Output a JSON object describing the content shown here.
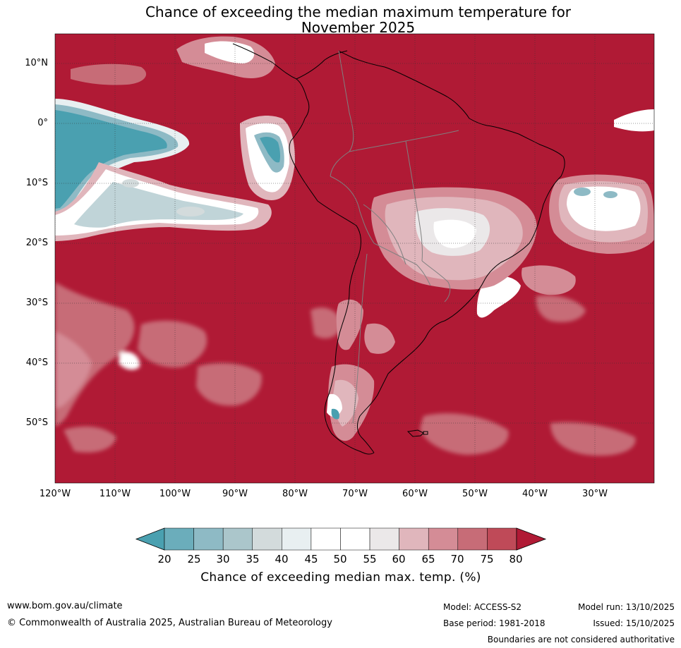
{
  "title": {
    "line1": "Chance of exceeding the median maximum temperature for",
    "line2": "November 2025"
  },
  "map": {
    "region": "South America",
    "latitude_labels": [
      "10°N",
      "0°",
      "10°S",
      "20°S",
      "30°S",
      "40°S",
      "50°S"
    ],
    "longitude_labels": [
      "120°W",
      "110°W",
      "100°W",
      "90°W",
      "80°W",
      "70°W",
      "60°W",
      "50°W",
      "40°W",
      "30°W"
    ],
    "colors": {
      "ocean_dominant": "#b01a35",
      "land_outline": "#000000",
      "borders": "#808080"
    }
  },
  "colorbar": {
    "title": "Chance of exceeding median max. temp. (%)",
    "ticks": [
      "20",
      "25",
      "30",
      "35",
      "40",
      "45",
      "50",
      "55",
      "60",
      "65",
      "70",
      "75",
      "80"
    ],
    "colors": [
      "#4aa0b0",
      "#6badbb",
      "#8ebac5",
      "#abc6cb",
      "#d3dbdc",
      "#e8eff1",
      "#ffffff",
      "#ffffff",
      "#ebe8e9",
      "#e0b6bc",
      "#d48c96",
      "#c76c77",
      "#bf4a58",
      "#b01a35"
    ]
  },
  "footer": {
    "website": "www.bom.gov.au/climate",
    "copyright": "© Commonwealth of Australia 2025, Australian Bureau of Meteorology",
    "model": "Model: ACCESS-S2",
    "base_period": "Base period: 1981-2018",
    "model_run": "Model run: 13/10/2025",
    "issued": "Issued: 15/10/2025",
    "disclaimer": "Boundaries are not considered authoritative"
  }
}
